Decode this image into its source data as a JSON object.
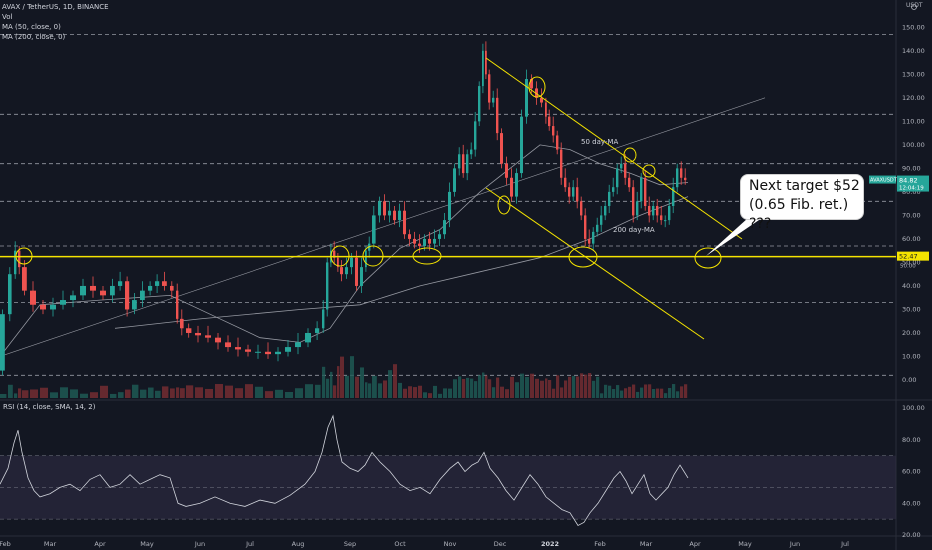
{
  "header": {
    "symbol_line": "AVAX / TetherUS, 1D, BINANCE",
    "vol_label": "Vol",
    "ma50_label": "MA (50, close, 0)",
    "ma200_label": "MA (200, close, 0)",
    "currency": "USDT"
  },
  "rsi_panel": {
    "label": "RSI (14, close, SMA, 14, 2)"
  },
  "callout": {
    "line1": "Next target $52",
    "line2": "(0.65 Fib. ret.) ???"
  },
  "annotations": {
    "ma50": "50 day-MA",
    "ma200": "200 day-MA"
  },
  "price_badges": {
    "symbol": "AVAXUSDT",
    "last": "84.82",
    "countdown": "12:04:19",
    "level": "52.47",
    "level_sub": "50.00"
  },
  "colors": {
    "up": "#26a69a",
    "down": "#ef5350",
    "annotation": "#f5e400",
    "ma": "#9598a1"
  },
  "chart_data": {
    "type": "candlestick",
    "price_axis_ticks": [
      "150.00",
      "140.00",
      "130.00",
      "120.00",
      "110.00",
      "100.00",
      "90.00",
      "80.00",
      "70.00",
      "60.00",
      "50.00",
      "40.00",
      "30.00",
      "20.00",
      "10.00",
      "0.00"
    ],
    "rsi_axis_ticks": [
      "100.00",
      "80.00",
      "60.00",
      "40.00",
      "20.00"
    ],
    "time_axis_labels": [
      "Feb",
      "Mar",
      "Apr",
      "May",
      "Jun",
      "Jul",
      "Aug",
      "Sep",
      "Oct",
      "Nov",
      "Dec",
      "2022",
      "Feb",
      "Mar",
      "Apr",
      "May",
      "Jun",
      "Jul"
    ],
    "ylim": [
      0,
      152
    ],
    "horizontal_levels": [
      147,
      113,
      92,
      76,
      57,
      33,
      2
    ],
    "key_level": 52.47,
    "price_path": [
      [
        0,
        4
      ],
      [
        8,
        28
      ],
      [
        14,
        45
      ],
      [
        18,
        55
      ],
      [
        22,
        48
      ],
      [
        30,
        38
      ],
      [
        40,
        32
      ],
      [
        50,
        30
      ],
      [
        60,
        32
      ],
      [
        70,
        34
      ],
      [
        80,
        36
      ],
      [
        90,
        40
      ],
      [
        100,
        38
      ],
      [
        110,
        36
      ],
      [
        118,
        40
      ],
      [
        125,
        42
      ],
      [
        132,
        30
      ],
      [
        140,
        34
      ],
      [
        148,
        38
      ],
      [
        155,
        40
      ],
      [
        162,
        42
      ],
      [
        170,
        40
      ],
      [
        176,
        38
      ],
      [
        180,
        26
      ],
      [
        186,
        22
      ],
      [
        195,
        20
      ],
      [
        205,
        19
      ],
      [
        215,
        18
      ],
      [
        225,
        16
      ],
      [
        235,
        14
      ],
      [
        245,
        13
      ],
      [
        255,
        12
      ],
      [
        265,
        12
      ],
      [
        275,
        11
      ],
      [
        285,
        12
      ],
      [
        295,
        14
      ],
      [
        305,
        16
      ],
      [
        315,
        20
      ],
      [
        322,
        22
      ],
      [
        326,
        30
      ],
      [
        330,
        50
      ],
      [
        333,
        55
      ],
      [
        337,
        52
      ],
      [
        340,
        48
      ],
      [
        345,
        45
      ],
      [
        350,
        48
      ],
      [
        355,
        52
      ],
      [
        360,
        40
      ],
      [
        365,
        48
      ],
      [
        368,
        55
      ],
      [
        372,
        58
      ],
      [
        378,
        70
      ],
      [
        383,
        76
      ],
      [
        388,
        70
      ],
      [
        393,
        72
      ],
      [
        398,
        68
      ],
      [
        403,
        72
      ],
      [
        408,
        62
      ],
      [
        413,
        60
      ],
      [
        418,
        58
      ],
      [
        423,
        57
      ],
      [
        428,
        60
      ],
      [
        433,
        58
      ],
      [
        438,
        60
      ],
      [
        443,
        62
      ],
      [
        448,
        68
      ],
      [
        453,
        80
      ],
      [
        458,
        90
      ],
      [
        462,
        96
      ],
      [
        466,
        88
      ],
      [
        470,
        96
      ],
      [
        474,
        98
      ],
      [
        478,
        110
      ],
      [
        482,
        125
      ],
      [
        485,
        140
      ],
      [
        488,
        130
      ],
      [
        492,
        118
      ],
      [
        496,
        120
      ],
      [
        500,
        105
      ],
      [
        505,
        92
      ],
      [
        510,
        86
      ],
      [
        515,
        78
      ],
      [
        520,
        88
      ],
      [
        525,
        112
      ],
      [
        530,
        128
      ],
      [
        535,
        124
      ],
      [
        540,
        120
      ],
      [
        545,
        118
      ],
      [
        548,
        112
      ],
      [
        552,
        108
      ],
      [
        556,
        104
      ],
      [
        560,
        98
      ],
      [
        564,
        86
      ],
      [
        568,
        82
      ],
      [
        572,
        78
      ],
      [
        576,
        82
      ],
      [
        580,
        76
      ],
      [
        584,
        70
      ],
      [
        588,
        60
      ],
      [
        592,
        58
      ],
      [
        596,
        63
      ],
      [
        600,
        66
      ],
      [
        604,
        70
      ],
      [
        608,
        74
      ],
      [
        612,
        80
      ],
      [
        616,
        82
      ],
      [
        620,
        90
      ],
      [
        624,
        92
      ],
      [
        628,
        86
      ],
      [
        632,
        82
      ],
      [
        636,
        70
      ],
      [
        640,
        76
      ],
      [
        644,
        86
      ],
      [
        648,
        74
      ],
      [
        652,
        70
      ],
      [
        656,
        74
      ],
      [
        660,
        70
      ],
      [
        664,
        68
      ],
      [
        668,
        68
      ],
      [
        672,
        74
      ],
      [
        676,
        82
      ],
      [
        680,
        90
      ],
      [
        684,
        86
      ],
      [
        688,
        85
      ]
    ],
    "ma50_path": [
      [
        0,
        10
      ],
      [
        40,
        32
      ],
      [
        100,
        34
      ],
      [
        170,
        36
      ],
      [
        210,
        28
      ],
      [
        260,
        18
      ],
      [
        300,
        16
      ],
      [
        330,
        22
      ],
      [
        360,
        40
      ],
      [
        400,
        56
      ],
      [
        440,
        64
      ],
      [
        480,
        80
      ],
      [
        510,
        90
      ],
      [
        540,
        100
      ],
      [
        570,
        98
      ],
      [
        600,
        92
      ],
      [
        630,
        88
      ],
      [
        660,
        83
      ],
      [
        688,
        84
      ]
    ],
    "ma200_path": [
      [
        115,
        22
      ],
      [
        200,
        26
      ],
      [
        300,
        30
      ],
      [
        360,
        32
      ],
      [
        420,
        40
      ],
      [
        480,
        46
      ],
      [
        540,
        52
      ],
      [
        590,
        60
      ],
      [
        640,
        70
      ],
      [
        688,
        78
      ]
    ],
    "rsi_ylim": [
      20,
      100
    ],
    "rsi_path": [
      [
        0,
        52
      ],
      [
        8,
        62
      ],
      [
        14,
        78
      ],
      [
        18,
        86
      ],
      [
        22,
        72
      ],
      [
        28,
        56
      ],
      [
        34,
        48
      ],
      [
        40,
        44
      ],
      [
        50,
        46
      ],
      [
        60,
        50
      ],
      [
        70,
        52
      ],
      [
        80,
        48
      ],
      [
        90,
        55
      ],
      [
        100,
        58
      ],
      [
        110,
        50
      ],
      [
        120,
        52
      ],
      [
        130,
        58
      ],
      [
        140,
        52
      ],
      [
        150,
        55
      ],
      [
        160,
        58
      ],
      [
        170,
        56
      ],
      [
        178,
        40
      ],
      [
        186,
        38
      ],
      [
        200,
        40
      ],
      [
        215,
        44
      ],
      [
        230,
        40
      ],
      [
        245,
        38
      ],
      [
        260,
        42
      ],
      [
        275,
        40
      ],
      [
        290,
        45
      ],
      [
        305,
        52
      ],
      [
        315,
        60
      ],
      [
        322,
        72
      ],
      [
        328,
        88
      ],
      [
        333,
        95
      ],
      [
        337,
        80
      ],
      [
        342,
        66
      ],
      [
        350,
        62
      ],
      [
        358,
        60
      ],
      [
        365,
        64
      ],
      [
        372,
        72
      ],
      [
        380,
        66
      ],
      [
        390,
        60
      ],
      [
        400,
        52
      ],
      [
        410,
        48
      ],
      [
        420,
        50
      ],
      [
        430,
        46
      ],
      [
        440,
        55
      ],
      [
        450,
        62
      ],
      [
        458,
        66
      ],
      [
        465,
        60
      ],
      [
        472,
        64
      ],
      [
        478,
        66
      ],
      [
        484,
        72
      ],
      [
        490,
        62
      ],
      [
        498,
        56
      ],
      [
        506,
        48
      ],
      [
        514,
        42
      ],
      [
        522,
        50
      ],
      [
        530,
        58
      ],
      [
        538,
        52
      ],
      [
        546,
        44
      ],
      [
        554,
        40
      ],
      [
        562,
        36
      ],
      [
        570,
        34
      ],
      [
        578,
        26
      ],
      [
        584,
        28
      ],
      [
        590,
        34
      ],
      [
        598,
        40
      ],
      [
        606,
        48
      ],
      [
        614,
        56
      ],
      [
        620,
        60
      ],
      [
        626,
        54
      ],
      [
        632,
        46
      ],
      [
        638,
        52
      ],
      [
        644,
        58
      ],
      [
        650,
        46
      ],
      [
        656,
        42
      ],
      [
        662,
        46
      ],
      [
        668,
        50
      ],
      [
        674,
        58
      ],
      [
        680,
        64
      ],
      [
        684,
        60
      ],
      [
        688,
        56
      ]
    ]
  }
}
